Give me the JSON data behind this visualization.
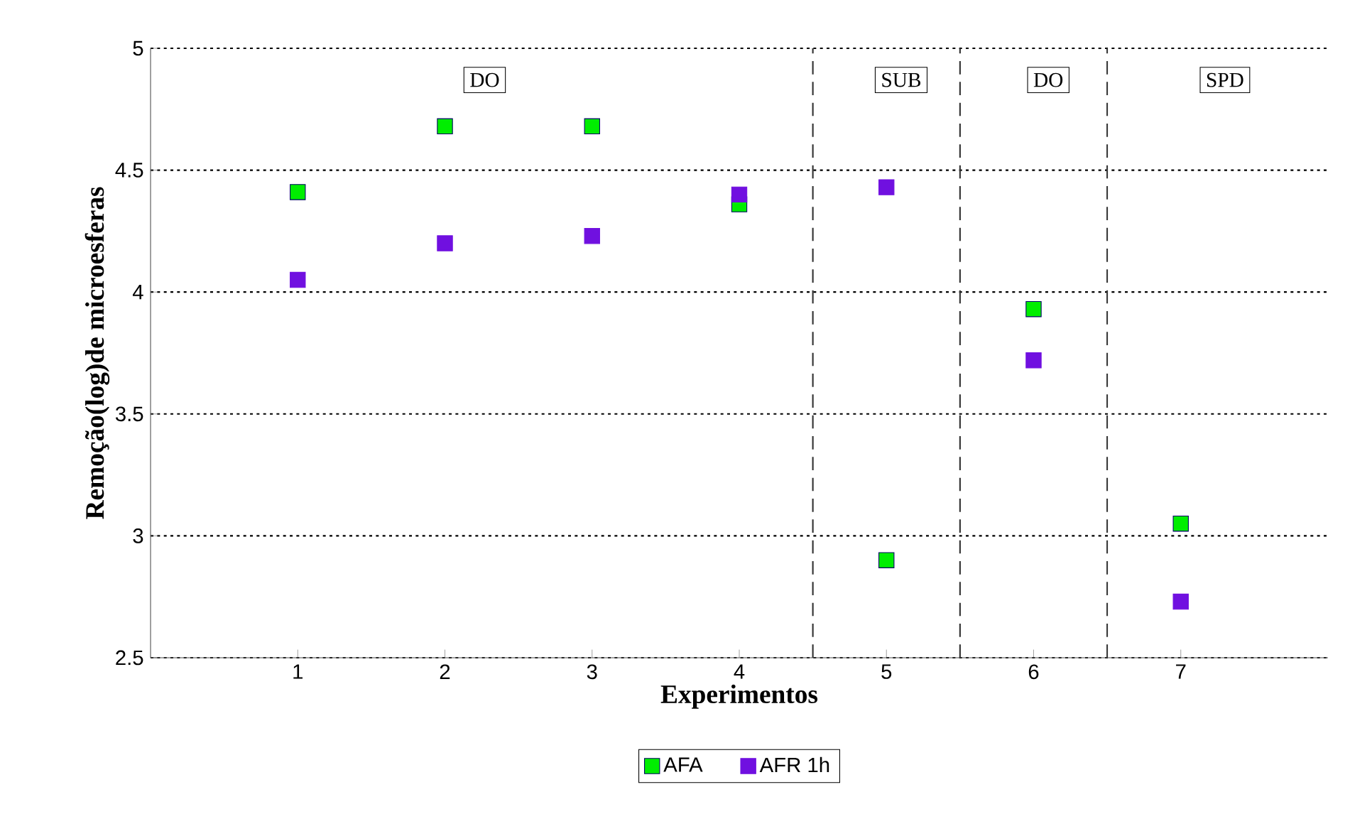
{
  "chart_data": {
    "type": "scatter",
    "xlabel": "Experimentos",
    "ylabel": "Remoção(log)de microesferas",
    "x": [
      1,
      2,
      3,
      4,
      5,
      6,
      7
    ],
    "series": [
      {
        "name": "AFA",
        "color": "#00ee00",
        "values": [
          4.41,
          4.68,
          4.68,
          4.36,
          2.9,
          3.93,
          3.05
        ]
      },
      {
        "name": "AFR 1h",
        "color": "#7010e0",
        "values": [
          4.05,
          4.2,
          4.23,
          4.4,
          4.43,
          3.72,
          2.73
        ]
      }
    ],
    "xlim": [
      0,
      8
    ],
    "xticks": [
      1,
      2,
      3,
      4,
      5,
      6,
      7
    ],
    "ylim": [
      2.5,
      5
    ],
    "yticks": [
      2.5,
      3,
      3.5,
      4,
      4.5,
      5
    ],
    "grid": "y",
    "marker": "square",
    "legend": "bottom",
    "ref_lines": [
      {
        "axis": "x",
        "value": 4.5,
        "line_style": "dashed"
      },
      {
        "axis": "x",
        "value": 5.5,
        "line_style": "dashed"
      },
      {
        "axis": "x",
        "value": 6.5,
        "line_style": "dashed"
      }
    ],
    "annotations": [
      {
        "text": "DO",
        "x": 2.27,
        "y": 4.87
      },
      {
        "text": "SUB",
        "x": 5.1,
        "y": 4.87
      },
      {
        "text": "DO",
        "x": 6.1,
        "y": 4.87
      },
      {
        "text": "SPD",
        "x": 7.3,
        "y": 4.87
      }
    ]
  }
}
